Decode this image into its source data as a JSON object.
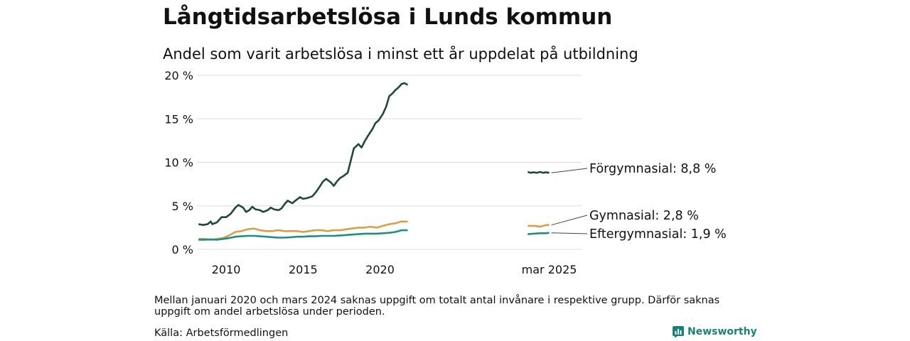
{
  "title": "Långtidsarbetslösa i Lunds kommun",
  "subtitle": "Andel som varit arbetslösa i minst ett år uppdelat på utbildning",
  "note": "Mellan januari 2020 och mars 2024 saknas uppgift om totalt antal invånare i respektive grupp. Därför saknas uppgift om andel arbetslösa under perioden.",
  "source": "Källa: Arbetsförmedlingen",
  "brand": "Newsworthy",
  "chart_data": {
    "type": "line",
    "y_ticks": [
      "0 %",
      "5 %",
      "10 %",
      "15 %",
      "20 %"
    ],
    "x_ticks": [
      "2010",
      "2015",
      "2020",
      "mar 2025"
    ],
    "ylim": [
      0,
      20
    ],
    "grid": true,
    "series": [
      {
        "name": "Förgymnasial",
        "label": "Förgymnasial: 8,8 %",
        "color": "#1f4740",
        "points": [
          [
            2008.2,
            2.9
          ],
          [
            2008.5,
            2.8
          ],
          [
            2008.8,
            2.9
          ],
          [
            2009.0,
            3.2
          ],
          [
            2009.1,
            2.9
          ],
          [
            2009.4,
            3.1
          ],
          [
            2009.7,
            3.7
          ],
          [
            2010.0,
            3.7
          ],
          [
            2010.3,
            4.1
          ],
          [
            2010.6,
            4.8
          ],
          [
            2010.8,
            5.1
          ],
          [
            2011.1,
            4.8
          ],
          [
            2011.3,
            4.3
          ],
          [
            2011.5,
            4.5
          ],
          [
            2011.7,
            4.9
          ],
          [
            2011.9,
            4.6
          ],
          [
            2012.2,
            4.5
          ],
          [
            2012.4,
            4.3
          ],
          [
            2012.7,
            4.5
          ],
          [
            2012.9,
            4.8
          ],
          [
            2013.1,
            4.6
          ],
          [
            2013.4,
            4.5
          ],
          [
            2013.6,
            4.7
          ],
          [
            2013.8,
            5.2
          ],
          [
            2014.0,
            5.6
          ],
          [
            2014.3,
            5.3
          ],
          [
            2014.5,
            5.6
          ],
          [
            2014.8,
            6.0
          ],
          [
            2015.0,
            5.8
          ],
          [
            2015.3,
            5.9
          ],
          [
            2015.6,
            6.1
          ],
          [
            2015.8,
            6.5
          ],
          [
            2016.0,
            7.0
          ],
          [
            2016.3,
            7.8
          ],
          [
            2016.5,
            8.1
          ],
          [
            2016.8,
            7.7
          ],
          [
            2017.0,
            7.3
          ],
          [
            2017.2,
            7.8
          ],
          [
            2017.4,
            8.2
          ],
          [
            2017.6,
            8.4
          ],
          [
            2017.9,
            8.8
          ],
          [
            2018.1,
            10.2
          ],
          [
            2018.3,
            11.6
          ],
          [
            2018.6,
            12.1
          ],
          [
            2018.8,
            11.7
          ],
          [
            2019.0,
            12.4
          ],
          [
            2019.2,
            13.0
          ],
          [
            2019.5,
            13.8
          ],
          [
            2019.7,
            14.5
          ],
          [
            2019.9,
            14.8
          ],
          [
            2020.2,
            15.6
          ],
          [
            2020.4,
            16.4
          ],
          [
            2020.6,
            17.6
          ],
          [
            2020.8,
            17.9
          ],
          [
            2021.0,
            18.3
          ],
          [
            2021.2,
            18.6
          ],
          [
            2021.4,
            19.0
          ],
          [
            2021.6,
            19.1
          ],
          [
            2021.8,
            18.9
          ]
        ],
        "recent_points": [
          [
            2029.6,
            8.9
          ],
          [
            2029.8,
            8.8
          ],
          [
            2030.0,
            8.85
          ],
          [
            2030.2,
            8.8
          ],
          [
            2030.4,
            8.9
          ],
          [
            2030.6,
            8.8
          ],
          [
            2030.8,
            8.85
          ],
          [
            2031.0,
            8.8
          ]
        ]
      },
      {
        "name": "Gymnasial",
        "label": "Gymnasial: 2,8 %",
        "color": "#d4a04a",
        "points": [
          [
            2008.2,
            1.2
          ],
          [
            2008.6,
            1.2
          ],
          [
            2009.0,
            1.1
          ],
          [
            2009.4,
            1.2
          ],
          [
            2009.8,
            1.3
          ],
          [
            2010.2,
            1.6
          ],
          [
            2010.6,
            2.0
          ],
          [
            2011.0,
            2.1
          ],
          [
            2011.4,
            2.3
          ],
          [
            2011.8,
            2.4
          ],
          [
            2012.2,
            2.2
          ],
          [
            2012.6,
            2.1
          ],
          [
            2013.0,
            2.1
          ],
          [
            2013.4,
            2.2
          ],
          [
            2013.8,
            2.1
          ],
          [
            2014.2,
            2.1
          ],
          [
            2014.6,
            2.1
          ],
          [
            2015.0,
            2.0
          ],
          [
            2015.4,
            2.1
          ],
          [
            2015.8,
            2.2
          ],
          [
            2016.2,
            2.2
          ],
          [
            2016.6,
            2.1
          ],
          [
            2017.0,
            2.2
          ],
          [
            2017.4,
            2.2
          ],
          [
            2017.8,
            2.3
          ],
          [
            2018.2,
            2.4
          ],
          [
            2018.6,
            2.5
          ],
          [
            2019.0,
            2.5
          ],
          [
            2019.4,
            2.6
          ],
          [
            2019.8,
            2.5
          ],
          [
            2020.2,
            2.7
          ],
          [
            2020.6,
            2.9
          ],
          [
            2021.0,
            3.0
          ],
          [
            2021.4,
            3.2
          ],
          [
            2021.8,
            3.2
          ]
        ],
        "recent_points": [
          [
            2029.6,
            2.7
          ],
          [
            2030.0,
            2.7
          ],
          [
            2030.4,
            2.6
          ],
          [
            2030.8,
            2.8
          ],
          [
            2031.0,
            2.8
          ]
        ]
      },
      {
        "name": "Eftergymnasial",
        "label": "Eftergymnasial: 1,9 %",
        "color": "#1f8f7f",
        "points": [
          [
            2008.2,
            1.1
          ],
          [
            2008.6,
            1.1
          ],
          [
            2009.0,
            1.15
          ],
          [
            2009.4,
            1.1
          ],
          [
            2009.8,
            1.2
          ],
          [
            2010.2,
            1.3
          ],
          [
            2010.6,
            1.45
          ],
          [
            2011.0,
            1.5
          ],
          [
            2011.4,
            1.55
          ],
          [
            2011.8,
            1.55
          ],
          [
            2012.2,
            1.5
          ],
          [
            2012.6,
            1.45
          ],
          [
            2013.0,
            1.4
          ],
          [
            2013.4,
            1.35
          ],
          [
            2013.8,
            1.35
          ],
          [
            2014.2,
            1.4
          ],
          [
            2014.6,
            1.45
          ],
          [
            2015.0,
            1.45
          ],
          [
            2015.4,
            1.5
          ],
          [
            2015.8,
            1.5
          ],
          [
            2016.2,
            1.55
          ],
          [
            2016.6,
            1.55
          ],
          [
            2017.0,
            1.55
          ],
          [
            2017.4,
            1.6
          ],
          [
            2017.8,
            1.65
          ],
          [
            2018.2,
            1.7
          ],
          [
            2018.6,
            1.75
          ],
          [
            2019.0,
            1.8
          ],
          [
            2019.4,
            1.8
          ],
          [
            2019.8,
            1.8
          ],
          [
            2020.2,
            1.85
          ],
          [
            2020.6,
            1.9
          ],
          [
            2021.0,
            2.0
          ],
          [
            2021.4,
            2.2
          ],
          [
            2021.8,
            2.2
          ]
        ],
        "recent_points": [
          [
            2029.6,
            1.75
          ],
          [
            2030.0,
            1.8
          ],
          [
            2030.4,
            1.85
          ],
          [
            2030.8,
            1.85
          ],
          [
            2031.0,
            1.9
          ]
        ]
      }
    ]
  }
}
